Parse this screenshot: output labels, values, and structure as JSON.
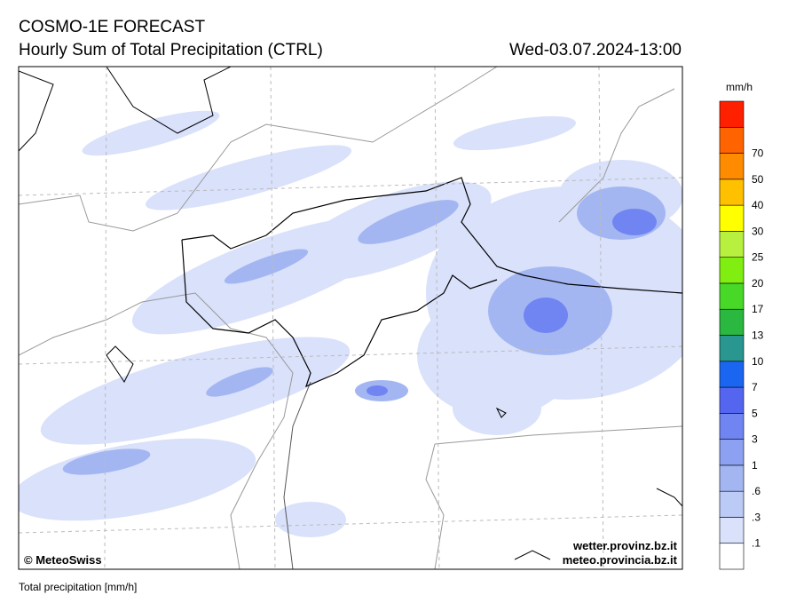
{
  "header": {
    "title": "COSMO-1E FORECAST",
    "subtitle": "Hourly Sum of Total Precipitation (CTRL)",
    "datetime": "Wed-03.07.2024-13:00"
  },
  "legend": {
    "unit": "mm/h",
    "labels": [
      ".1",
      ".3",
      ".6",
      "1",
      "3",
      "5",
      "7",
      "10",
      "13",
      "17",
      "20",
      "25",
      "30",
      "40",
      "50",
      "70"
    ],
    "colors": [
      "#ffffff",
      "#d9e1fb",
      "#bccbf6",
      "#a3b6f2",
      "#8ca1f1",
      "#7085f2",
      "#5466f0",
      "#1a66f0",
      "#2a9690",
      "#2ab840",
      "#48d828",
      "#80ee10",
      "#b8f040",
      "#ffff00",
      "#ffc000",
      "#ff8c00",
      "#ff6400",
      "#ff2000"
    ]
  },
  "map": {
    "credit": "© MeteoSwiss",
    "links": [
      "wetter.provinz.bz.it",
      "meteo.provincia.bz.it"
    ]
  },
  "footer": "Total precipitation [mm/h]"
}
